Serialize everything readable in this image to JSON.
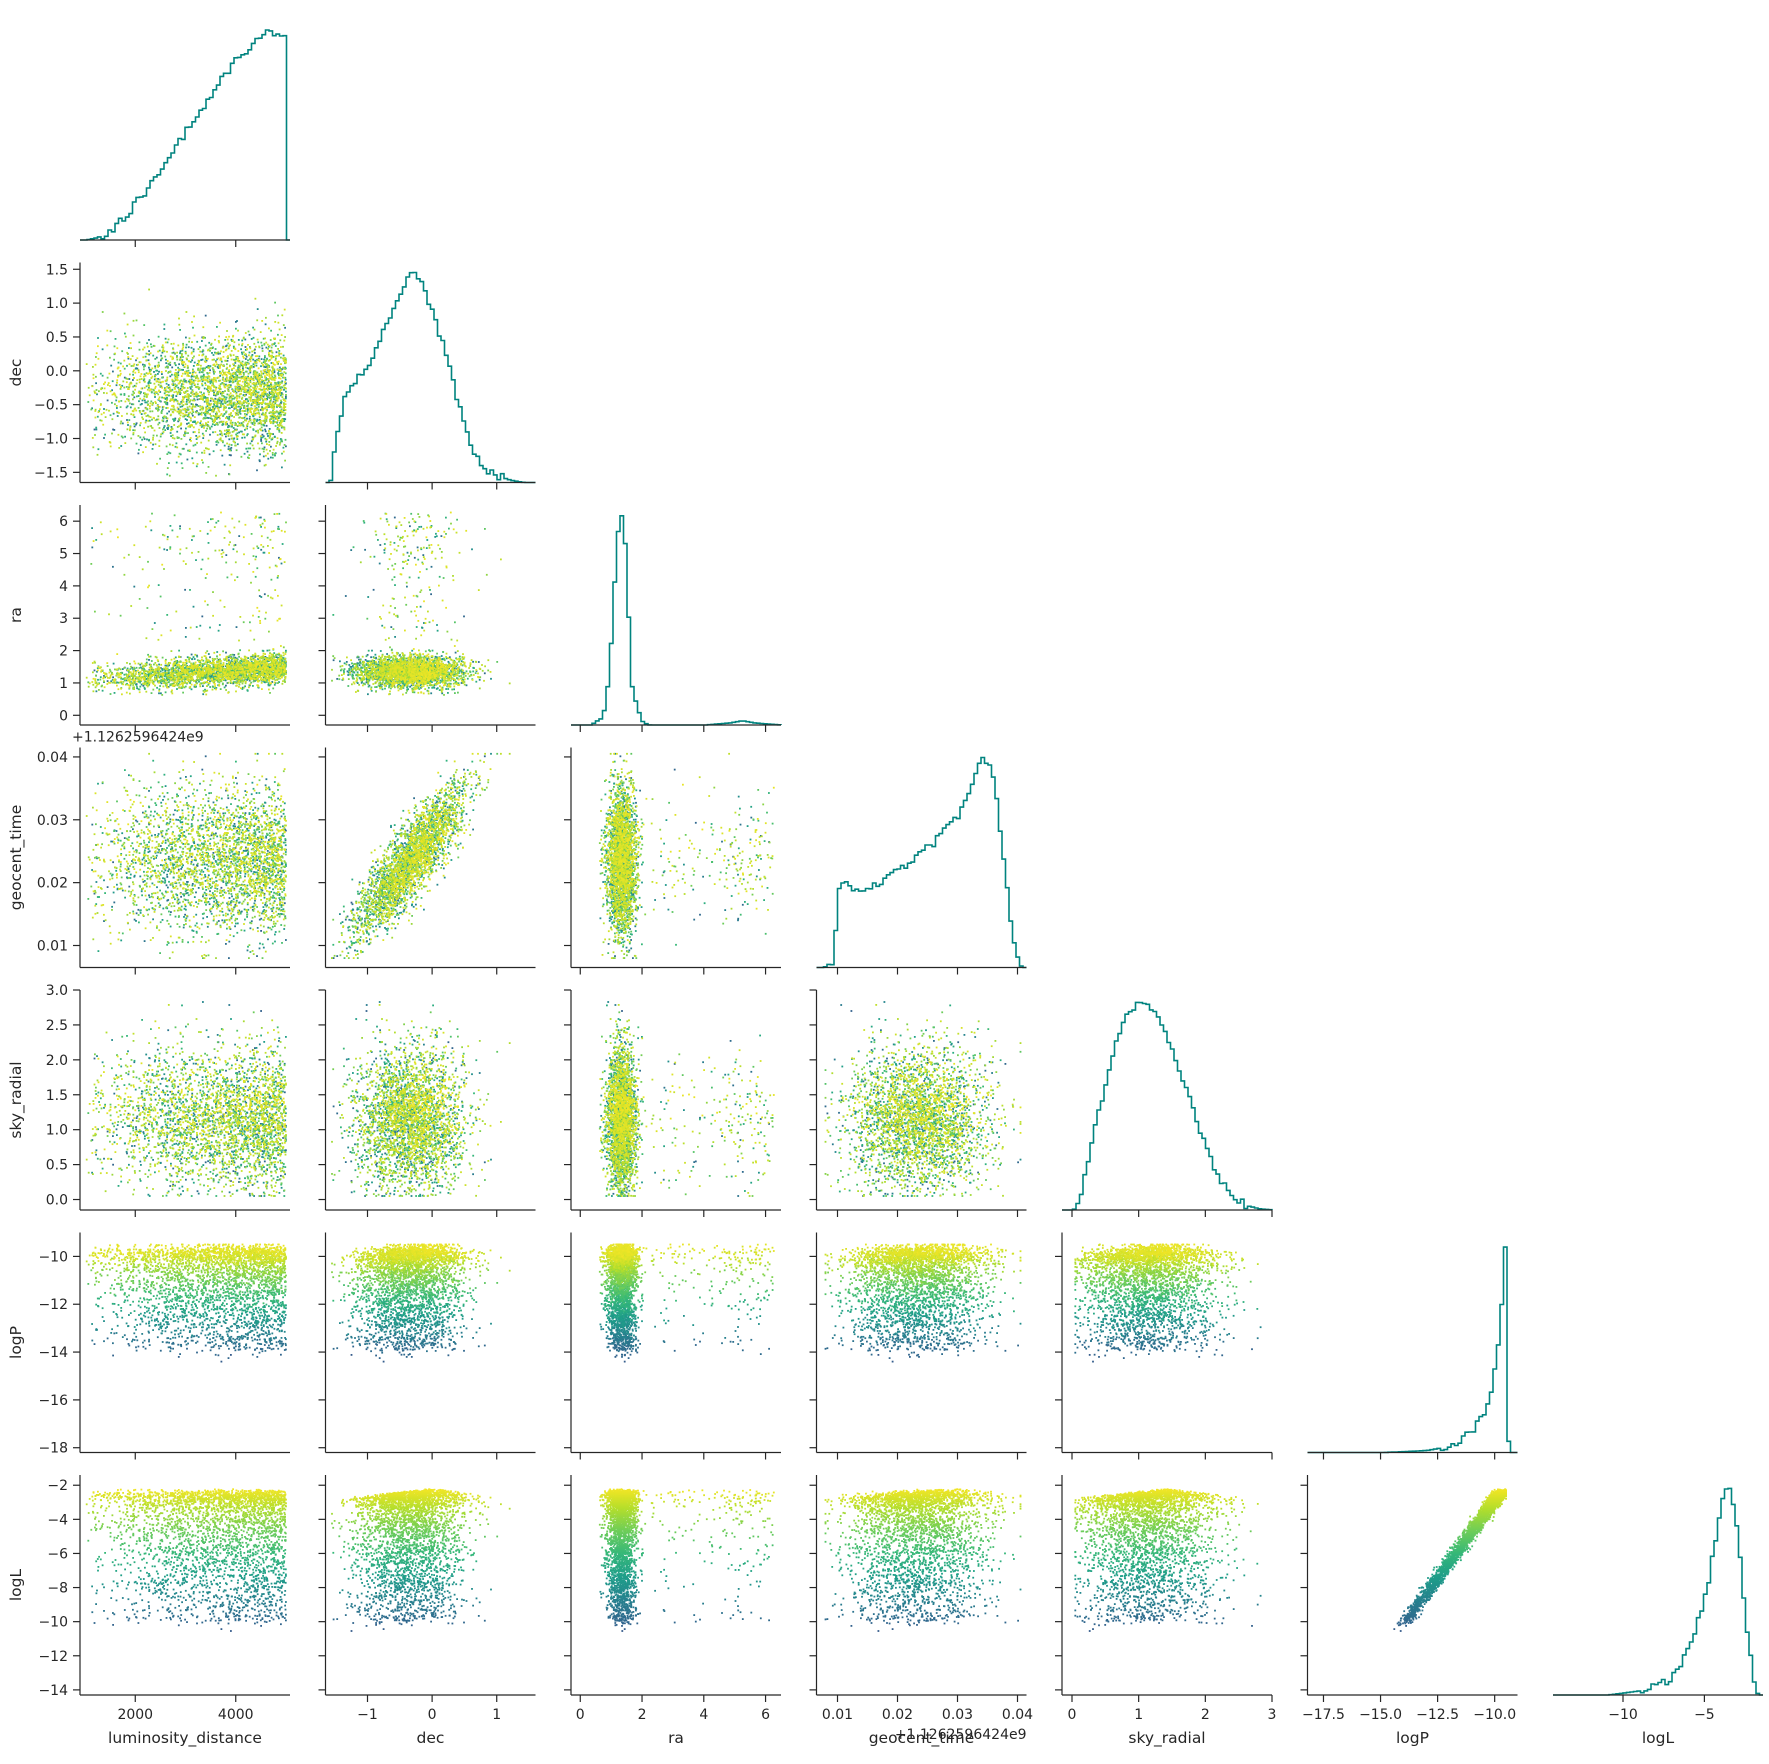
{
  "chart_data": {
    "type": "scatter",
    "layout": "corner-plot",
    "colormap": "viridis",
    "line_color": "#00837f",
    "axis_color": "#262626",
    "parameters": [
      {
        "name": "luminosity_distance",
        "label": "luminosity_distance",
        "range": [
          900,
          5080
        ],
        "ticks": [
          2000,
          4000
        ],
        "tick_labels": [
          "2000",
          "4000"
        ]
      },
      {
        "name": "dec",
        "label": "dec",
        "range": [
          -1.65,
          1.6
        ],
        "ticks": [
          -1.5,
          -1.0,
          -0.5,
          0.0,
          0.5,
          1.0,
          1.5
        ],
        "tick_labels": [
          "−1.5",
          "−1.0",
          "−0.5",
          "0.0",
          "0.5",
          "1.0",
          "1.5"
        ],
        "x_ticks": [
          -1,
          0,
          1
        ],
        "x_tick_labels": [
          "−1",
          "0",
          "1"
        ]
      },
      {
        "name": "ra",
        "label": "ra",
        "range": [
          -0.3,
          6.5
        ],
        "ticks": [
          0,
          1,
          2,
          3,
          4,
          5,
          6
        ],
        "tick_labels": [
          "0",
          "1",
          "2",
          "3",
          "4",
          "5",
          "6"
        ],
        "x_ticks": [
          0,
          2,
          4,
          6
        ],
        "x_tick_labels": [
          "0",
          "2",
          "4",
          "6"
        ]
      },
      {
        "name": "geocent_time",
        "label": "geocent_time",
        "range": [
          0.0065,
          0.0415
        ],
        "ticks": [
          0.01,
          0.02,
          0.03,
          0.04
        ],
        "tick_labels": [
          "0.01",
          "0.02",
          "0.03",
          "0.04"
        ],
        "offset_text": "+1.1262596424e9"
      },
      {
        "name": "sky_radial",
        "label": "sky_radial",
        "range": [
          -0.15,
          3.0
        ],
        "ticks": [
          0.0,
          0.5,
          1.0,
          1.5,
          2.0,
          2.5,
          3.0
        ],
        "tick_labels": [
          "0.0",
          "0.5",
          "1.0",
          "1.5",
          "2.0",
          "2.5",
          "3.0"
        ],
        "x_ticks": [
          0,
          1,
          2,
          3
        ],
        "x_tick_labels": [
          "0",
          "1",
          "2",
          "3"
        ]
      },
      {
        "name": "logP",
        "label": "logP",
        "range": [
          -18.2,
          -9.0
        ],
        "ticks": [
          -18,
          -16,
          -14,
          -12,
          -10
        ],
        "tick_labels": [
          "−18",
          "−16",
          "−14",
          "−12",
          "−10"
        ],
        "x_ticks": [
          -17.5,
          -15.0,
          -12.5,
          -10.0
        ],
        "x_tick_labels": [
          "−17.5",
          "−15.0",
          "−12.5",
          "−10.0"
        ]
      },
      {
        "name": "logL",
        "label": "logL",
        "range": [
          -14.3,
          -1.4
        ],
        "ticks": [
          -14,
          -12,
          -10,
          -8,
          -6,
          -4,
          -2
        ],
        "tick_labels": [
          "−14",
          "−12",
          "−10",
          "−8",
          "−6",
          "−4",
          "−2"
        ],
        "x_ticks": [
          -10,
          -5
        ],
        "x_tick_labels": [
          "−10",
          "−5"
        ]
      }
    ],
    "histograms": [
      {
        "param": "luminosity_distance",
        "x": [
          1000,
          1200,
          1400,
          1600,
          1800,
          2000,
          2200,
          2400,
          2600,
          2800,
          3000,
          3200,
          3400,
          3600,
          3800,
          4000,
          4200,
          4400,
          4600,
          4800,
          5000
        ],
        "density": [
          0.0,
          0.01,
          0.03,
          0.07,
          0.12,
          0.18,
          0.24,
          0.3,
          0.37,
          0.44,
          0.52,
          0.59,
          0.66,
          0.73,
          0.79,
          0.85,
          0.9,
          0.95,
          0.99,
          0.97,
          0.95
        ]
      },
      {
        "param": "dec",
        "x": [
          -1.6,
          -1.5,
          -1.4,
          -1.2,
          -1.0,
          -0.8,
          -0.6,
          -0.4,
          -0.3,
          -0.2,
          -0.1,
          0.0,
          0.2,
          0.4,
          0.6,
          0.8,
          1.0,
          1.2,
          1.4,
          1.6
        ],
        "density": [
          0.0,
          0.24,
          0.38,
          0.48,
          0.56,
          0.7,
          0.85,
          0.98,
          1.0,
          0.97,
          0.88,
          0.8,
          0.6,
          0.36,
          0.16,
          0.06,
          0.03,
          0.01,
          0.0,
          0.0
        ]
      },
      {
        "param": "ra",
        "x": [
          -0.1,
          0.3,
          0.6,
          0.8,
          1.0,
          1.1,
          1.2,
          1.3,
          1.4,
          1.5,
          1.6,
          1.8,
          2.0,
          2.2,
          2.6,
          3.0,
          4.0,
          4.8,
          5.2,
          5.6,
          6.0,
          6.5
        ],
        "density": [
          0.0,
          0.0,
          0.03,
          0.12,
          0.48,
          0.82,
          0.96,
          1.0,
          0.88,
          0.55,
          0.22,
          0.05,
          0.01,
          0.0,
          0.0,
          0.0,
          0.0,
          0.01,
          0.02,
          0.01,
          0.005,
          0.0
        ]
      },
      {
        "param": "geocent_time",
        "x": [
          0.0075,
          0.009,
          0.01,
          0.011,
          0.012,
          0.014,
          0.016,
          0.018,
          0.02,
          0.022,
          0.024,
          0.026,
          0.028,
          0.03,
          0.032,
          0.033,
          0.034,
          0.035,
          0.036,
          0.037,
          0.038,
          0.039,
          0.04,
          0.0405
        ],
        "density": [
          0.0,
          0.03,
          0.38,
          0.4,
          0.37,
          0.38,
          0.4,
          0.43,
          0.47,
          0.5,
          0.55,
          0.6,
          0.67,
          0.73,
          0.86,
          0.95,
          1.0,
          0.96,
          0.86,
          0.63,
          0.38,
          0.14,
          0.02,
          0.0
        ]
      },
      {
        "param": "sky_radial",
        "x": [
          0.0,
          0.1,
          0.2,
          0.4,
          0.6,
          0.8,
          1.0,
          1.1,
          1.2,
          1.4,
          1.6,
          1.8,
          2.0,
          2.2,
          2.4,
          2.6,
          2.8,
          3.0
        ],
        "density": [
          0.0,
          0.05,
          0.22,
          0.5,
          0.76,
          0.93,
          1.0,
          0.99,
          0.95,
          0.84,
          0.66,
          0.46,
          0.28,
          0.14,
          0.06,
          0.02,
          0.005,
          0.0
        ]
      },
      {
        "param": "logP",
        "x": [
          -18.0,
          -15.0,
          -14.0,
          -13.0,
          -12.0,
          -11.5,
          -11.0,
          -10.5,
          -10.2,
          -10.0,
          -9.8,
          -9.7,
          -9.6,
          -9.5,
          -9.45
        ],
        "density": [
          0.0,
          0.0,
          0.004,
          0.01,
          0.03,
          0.06,
          0.11,
          0.2,
          0.3,
          0.45,
          0.63,
          0.82,
          1.0,
          0.35,
          0.0
        ]
      },
      {
        "param": "logL",
        "x": [
          -14.0,
          -11.0,
          -10.0,
          -9.0,
          -8.0,
          -7.0,
          -6.0,
          -5.0,
          -4.5,
          -4.0,
          -3.5,
          -3.0,
          -2.5,
          -2.0,
          -1.8
        ],
        "density": [
          0.0,
          0.0,
          0.01,
          0.02,
          0.04,
          0.09,
          0.22,
          0.48,
          0.7,
          0.94,
          1.0,
          0.72,
          0.3,
          0.05,
          0.0
        ]
      }
    ]
  }
}
